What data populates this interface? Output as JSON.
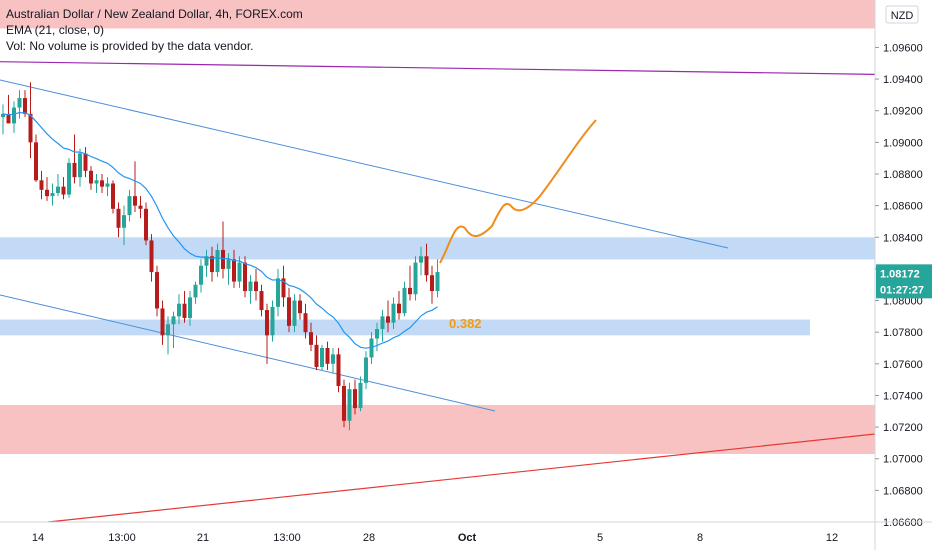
{
  "legend": {
    "title": "Australian Dollar / New Zealand Dollar, 4h, FOREX.com",
    "ema": "EMA (21, close, 0)",
    "vol": "Vol: No volume is provided by the data vendor."
  },
  "currency_badge": "NZD",
  "price_badge": "1.08172",
  "timer_badge": "01:27:27",
  "fib_label": "0.382",
  "colors": {
    "up": "#26a69a",
    "down": "#b71c1c",
    "ema": "#2196f3",
    "channel": "#4a90d9",
    "resistance_zone": "#f8b7b7",
    "support_zone": "#b9d3f5",
    "projection": "#ef8c1c",
    "purple_line": "#9c27b0",
    "red_line": "#e53935",
    "badge": "#26a69a",
    "fib": "#f39c12"
  },
  "chart_data": {
    "type": "candlestick",
    "symbol": "AUDNZD",
    "timeframe": "4h",
    "yticks": [
      "1.09600",
      "1.09400",
      "1.09200",
      "1.09000",
      "1.08800",
      "1.08600",
      "1.08400",
      "1.08200",
      "1.08000",
      "1.07800",
      "1.07600",
      "1.07400",
      "1.07200",
      "1.07000",
      "1.06800",
      "1.06600"
    ],
    "xticks": [
      "14",
      "13:00",
      "21",
      "13:00",
      "28",
      "Oct",
      "5",
      "8",
      "12"
    ],
    "ylim": [
      1.066,
      1.099
    ],
    "candles": [
      {
        "x": 0,
        "o": 1.0916,
        "h": 1.0924,
        "l": 1.0905,
        "c": 1.0918
      },
      {
        "x": 1,
        "o": 1.0918,
        "h": 1.093,
        "l": 1.0912,
        "c": 1.0912
      },
      {
        "x": 2,
        "o": 1.0912,
        "h": 1.0926,
        "l": 1.0906,
        "c": 1.0922
      },
      {
        "x": 3,
        "o": 1.0922,
        "h": 1.0933,
        "l": 1.0915,
        "c": 1.0928
      },
      {
        "x": 4,
        "o": 1.0928,
        "h": 1.0933,
        "l": 1.0916,
        "c": 1.0918
      },
      {
        "x": 5,
        "o": 1.0918,
        "h": 1.0938,
        "l": 1.089,
        "c": 1.09
      },
      {
        "x": 6,
        "o": 1.09,
        "h": 1.0905,
        "l": 1.0875,
        "c": 1.0876
      },
      {
        "x": 7,
        "o": 1.0876,
        "h": 1.0882,
        "l": 1.0864,
        "c": 1.087
      },
      {
        "x": 8,
        "o": 1.087,
        "h": 1.0878,
        "l": 1.0863,
        "c": 1.0866
      },
      {
        "x": 9,
        "o": 1.0866,
        "h": 1.0874,
        "l": 1.086,
        "c": 1.0868
      },
      {
        "x": 10,
        "o": 1.0868,
        "h": 1.088,
        "l": 1.0866,
        "c": 1.0872
      },
      {
        "x": 11,
        "o": 1.0872,
        "h": 1.0878,
        "l": 1.0864,
        "c": 1.0867
      },
      {
        "x": 12,
        "o": 1.0867,
        "h": 1.089,
        "l": 1.0865,
        "c": 1.0887
      },
      {
        "x": 13,
        "o": 1.0887,
        "h": 1.0905,
        "l": 1.0874,
        "c": 1.0878
      },
      {
        "x": 14,
        "o": 1.0878,
        "h": 1.0896,
        "l": 1.0872,
        "c": 1.0893
      },
      {
        "x": 15,
        "o": 1.0893,
        "h": 1.0897,
        "l": 1.0878,
        "c": 1.0882
      },
      {
        "x": 16,
        "o": 1.0882,
        "h": 1.0885,
        "l": 1.087,
        "c": 1.0874
      },
      {
        "x": 17,
        "o": 1.0874,
        "h": 1.088,
        "l": 1.0868,
        "c": 1.0876
      },
      {
        "x": 18,
        "o": 1.0876,
        "h": 1.088,
        "l": 1.0868,
        "c": 1.0872
      },
      {
        "x": 19,
        "o": 1.0872,
        "h": 1.0878,
        "l": 1.0866,
        "c": 1.0874
      },
      {
        "x": 20,
        "o": 1.0874,
        "h": 1.0876,
        "l": 1.0855,
        "c": 1.0858
      },
      {
        "x": 21,
        "o": 1.0858,
        "h": 1.0862,
        "l": 1.084,
        "c": 1.0846
      },
      {
        "x": 22,
        "o": 1.0846,
        "h": 1.086,
        "l": 1.0835,
        "c": 1.0854
      },
      {
        "x": 23,
        "o": 1.0854,
        "h": 1.087,
        "l": 1.085,
        "c": 1.0866
      },
      {
        "x": 24,
        "o": 1.0866,
        "h": 1.0888,
        "l": 1.0856,
        "c": 1.086
      },
      {
        "x": 25,
        "o": 1.086,
        "h": 1.0866,
        "l": 1.0852,
        "c": 1.0858
      },
      {
        "x": 26,
        "o": 1.0858,
        "h": 1.0862,
        "l": 1.0835,
        "c": 1.0838
      },
      {
        "x": 27,
        "o": 1.0838,
        "h": 1.0842,
        "l": 1.0812,
        "c": 1.0818
      },
      {
        "x": 28,
        "o": 1.0818,
        "h": 1.0822,
        "l": 1.079,
        "c": 1.0795
      },
      {
        "x": 29,
        "o": 1.0795,
        "h": 1.08,
        "l": 1.0772,
        "c": 1.0778
      },
      {
        "x": 30,
        "o": 1.0778,
        "h": 1.079,
        "l": 1.0766,
        "c": 1.0785
      },
      {
        "x": 31,
        "o": 1.0785,
        "h": 1.0793,
        "l": 1.077,
        "c": 1.079
      },
      {
        "x": 32,
        "o": 1.079,
        "h": 1.0804,
        "l": 1.0785,
        "c": 1.0798
      },
      {
        "x": 33,
        "o": 1.0798,
        "h": 1.0806,
        "l": 1.0786,
        "c": 1.0789
      },
      {
        "x": 34,
        "o": 1.0789,
        "h": 1.0806,
        "l": 1.0784,
        "c": 1.0802
      },
      {
        "x": 35,
        "o": 1.0802,
        "h": 1.0812,
        "l": 1.0798,
        "c": 1.081
      },
      {
        "x": 36,
        "o": 1.081,
        "h": 1.0826,
        "l": 1.0805,
        "c": 1.0822
      },
      {
        "x": 37,
        "o": 1.0822,
        "h": 1.0832,
        "l": 1.0815,
        "c": 1.0828
      },
      {
        "x": 38,
        "o": 1.0828,
        "h": 1.0834,
        "l": 1.0812,
        "c": 1.0818
      },
      {
        "x": 39,
        "o": 1.0818,
        "h": 1.0836,
        "l": 1.0815,
        "c": 1.0832
      },
      {
        "x": 40,
        "o": 1.0832,
        "h": 1.085,
        "l": 1.0814,
        "c": 1.082
      },
      {
        "x": 41,
        "o": 1.082,
        "h": 1.083,
        "l": 1.081,
        "c": 1.0826
      },
      {
        "x": 42,
        "o": 1.0826,
        "h": 1.0832,
        "l": 1.0808,
        "c": 1.0812
      },
      {
        "x": 43,
        "o": 1.0812,
        "h": 1.0828,
        "l": 1.0808,
        "c": 1.0824
      },
      {
        "x": 44,
        "o": 1.0824,
        "h": 1.0828,
        "l": 1.0802,
        "c": 1.0806
      },
      {
        "x": 45,
        "o": 1.0806,
        "h": 1.0816,
        "l": 1.0798,
        "c": 1.0812
      },
      {
        "x": 46,
        "o": 1.0812,
        "h": 1.082,
        "l": 1.08,
        "c": 1.0806
      },
      {
        "x": 47,
        "o": 1.0806,
        "h": 1.081,
        "l": 1.079,
        "c": 1.0794
      },
      {
        "x": 48,
        "o": 1.0794,
        "h": 1.0798,
        "l": 1.076,
        "c": 1.0778
      },
      {
        "x": 49,
        "o": 1.0778,
        "h": 1.08,
        "l": 1.0774,
        "c": 1.0796
      },
      {
        "x": 50,
        "o": 1.0796,
        "h": 1.082,
        "l": 1.079,
        "c": 1.0814
      },
      {
        "x": 51,
        "o": 1.0814,
        "h": 1.0822,
        "l": 1.0796,
        "c": 1.0802
      },
      {
        "x": 52,
        "o": 1.0802,
        "h": 1.0808,
        "l": 1.078,
        "c": 1.0784
      },
      {
        "x": 53,
        "o": 1.0784,
        "h": 1.0804,
        "l": 1.078,
        "c": 1.08
      },
      {
        "x": 54,
        "o": 1.08,
        "h": 1.0804,
        "l": 1.0788,
        "c": 1.0792
      },
      {
        "x": 55,
        "o": 1.0792,
        "h": 1.0798,
        "l": 1.0776,
        "c": 1.078
      },
      {
        "x": 56,
        "o": 1.078,
        "h": 1.0786,
        "l": 1.0768,
        "c": 1.0772
      },
      {
        "x": 57,
        "o": 1.0772,
        "h": 1.0778,
        "l": 1.0756,
        "c": 1.0758
      },
      {
        "x": 58,
        "o": 1.0758,
        "h": 1.0772,
        "l": 1.0756,
        "c": 1.077
      },
      {
        "x": 59,
        "o": 1.077,
        "h": 1.0774,
        "l": 1.0756,
        "c": 1.076
      },
      {
        "x": 60,
        "o": 1.076,
        "h": 1.077,
        "l": 1.0754,
        "c": 1.0766
      },
      {
        "x": 61,
        "o": 1.0766,
        "h": 1.077,
        "l": 1.0742,
        "c": 1.0746
      },
      {
        "x": 62,
        "o": 1.0746,
        "h": 1.075,
        "l": 1.072,
        "c": 1.0724
      },
      {
        "x": 63,
        "o": 1.0724,
        "h": 1.0748,
        "l": 1.0718,
        "c": 1.0744
      },
      {
        "x": 64,
        "o": 1.0744,
        "h": 1.075,
        "l": 1.0728,
        "c": 1.0732
      },
      {
        "x": 65,
        "o": 1.0732,
        "h": 1.0752,
        "l": 1.073,
        "c": 1.0748
      },
      {
        "x": 66,
        "o": 1.0748,
        "h": 1.0768,
        "l": 1.0744,
        "c": 1.0764
      },
      {
        "x": 67,
        "o": 1.0764,
        "h": 1.078,
        "l": 1.076,
        "c": 1.0776
      },
      {
        "x": 68,
        "o": 1.0776,
        "h": 1.0786,
        "l": 1.0768,
        "c": 1.0782
      },
      {
        "x": 69,
        "o": 1.0782,
        "h": 1.0794,
        "l": 1.0774,
        "c": 1.079
      },
      {
        "x": 70,
        "o": 1.079,
        "h": 1.08,
        "l": 1.078,
        "c": 1.0786
      },
      {
        "x": 71,
        "o": 1.0786,
        "h": 1.0802,
        "l": 1.0782,
        "c": 1.0798
      },
      {
        "x": 72,
        "o": 1.0798,
        "h": 1.0806,
        "l": 1.0788,
        "c": 1.0792
      },
      {
        "x": 73,
        "o": 1.0792,
        "h": 1.0812,
        "l": 1.079,
        "c": 1.0808
      },
      {
        "x": 74,
        "o": 1.0808,
        "h": 1.0822,
        "l": 1.08,
        "c": 1.0804
      },
      {
        "x": 75,
        "o": 1.0804,
        "h": 1.0828,
        "l": 1.08,
        "c": 1.0824
      },
      {
        "x": 76,
        "o": 1.0824,
        "h": 1.0834,
        "l": 1.0816,
        "c": 1.0828
      },
      {
        "x": 77,
        "o": 1.0828,
        "h": 1.0836,
        "l": 1.0812,
        "c": 1.0816
      },
      {
        "x": 78,
        "o": 1.0816,
        "h": 1.0822,
        "l": 1.0798,
        "c": 1.0806
      },
      {
        "x": 79,
        "o": 1.0806,
        "h": 1.0826,
        "l": 1.0802,
        "c": 1.0818
      }
    ],
    "time_labels": [
      "14",
      "13:00",
      "21",
      "13:00",
      "28",
      "Oct",
      "5",
      "8",
      "12"
    ],
    "zones": [
      {
        "type": "resistance",
        "top": 1.099,
        "bottom": 1.0972
      },
      {
        "type": "support",
        "top": 1.084,
        "bottom": 1.0826
      },
      {
        "type": "support",
        "top": 1.0788,
        "bottom": 1.0778
      },
      {
        "type": "resistance",
        "top": 1.0734,
        "bottom": 1.0703
      }
    ],
    "fib_level": "0.382",
    "last_price": "1.08172",
    "grid": false
  }
}
